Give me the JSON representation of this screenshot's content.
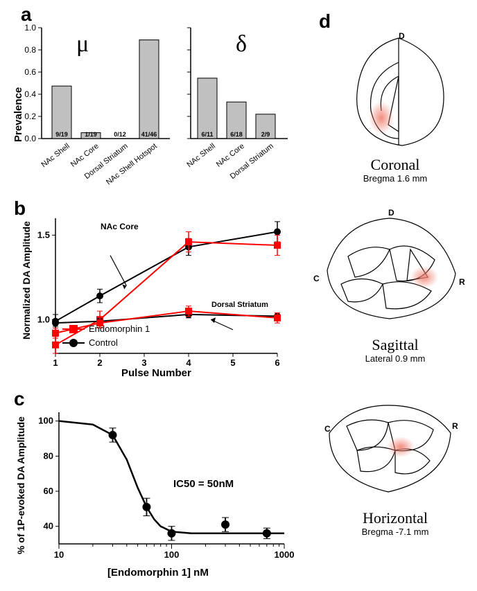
{
  "panel_a": {
    "label": "a",
    "ylabel": "Prevalence",
    "ylim": [
      0.0,
      1.0
    ],
    "ytick_step": 0.2,
    "mu_symbol": "μ",
    "delta_symbol": "δ",
    "bar_color": "#c0c0c0",
    "bar_border": "#000000",
    "mu": {
      "categories": [
        "NAc Shell",
        "NAc Core",
        "Dorsal Striatum",
        "NAc Shell Hotspot"
      ],
      "values": [
        0.474,
        0.053,
        0.0,
        0.89
      ],
      "fractions": [
        "9/19",
        "1/19",
        "0/12",
        "41/46"
      ]
    },
    "delta": {
      "categories": [
        "NAc Shell",
        "NAc Core",
        "Dorsal Striatum"
      ],
      "values": [
        0.545,
        0.33,
        0.22
      ],
      "fractions": [
        "6/11",
        "6/18",
        "2/9"
      ]
    }
  },
  "panel_b": {
    "label": "b",
    "ylabel": "Normalized DA Amplitude",
    "xlabel": "Pulse Number",
    "xlim": [
      1,
      6
    ],
    "ylim": [
      1.0,
      1.5
    ],
    "yticks": [
      1.0,
      1.5
    ],
    "series": [
      {
        "name": "Endomorphin 1",
        "color": "#ff0000",
        "marker": "square"
      },
      {
        "name": "Control",
        "color": "#000000",
        "marker": "circle"
      }
    ],
    "nac_core_label": "NAc Core",
    "dorsal_label": "Dorsal Striatum",
    "control_nac": {
      "x": [
        1,
        2,
        4,
        6
      ],
      "y": [
        0.99,
        1.14,
        1.43,
        1.52
      ],
      "err": [
        0.04,
        0.04,
        0.05,
        0.06
      ]
    },
    "endo_nac": {
      "x": [
        1,
        2,
        4,
        6
      ],
      "y": [
        0.85,
        1.0,
        1.46,
        1.44
      ],
      "err": [
        0.05,
        0.05,
        0.06,
        0.06
      ]
    },
    "control_ds": {
      "x": [
        1,
        2,
        4,
        6
      ],
      "y": [
        0.98,
        0.99,
        1.03,
        1.02
      ],
      "err": [
        0.02,
        0.02,
        0.02,
        0.02
      ]
    },
    "endo_ds": {
      "x": [
        1,
        2,
        4,
        6
      ],
      "y": [
        0.92,
        0.98,
        1.05,
        1.01
      ],
      "err": [
        0.03,
        0.03,
        0.03,
        0.03
      ]
    }
  },
  "panel_c": {
    "label": "c",
    "ylabel": "% of 1P-evoked DA Amplitude",
    "xlabel": "[Endomorphin 1] nM",
    "xlim": [
      10,
      1000
    ],
    "ylim": [
      40,
      100
    ],
    "yticks": [
      40,
      60,
      80,
      100
    ],
    "xticks": [
      10,
      100,
      1000
    ],
    "ic50_text": "IC50 = 50nM",
    "points": {
      "x": [
        30,
        60,
        100,
        300,
        700
      ],
      "y": [
        92,
        51,
        36,
        41,
        36
      ],
      "err": [
        4,
        5,
        4,
        4,
        3
      ]
    },
    "curve": [
      [
        10,
        100
      ],
      [
        20,
        98
      ],
      [
        30,
        92
      ],
      [
        40,
        78
      ],
      [
        50,
        62
      ],
      [
        60,
        51
      ],
      [
        70,
        44
      ],
      [
        80,
        40
      ],
      [
        100,
        37
      ],
      [
        150,
        36
      ],
      [
        300,
        36
      ],
      [
        700,
        36
      ],
      [
        1000,
        36
      ]
    ]
  },
  "panel_d": {
    "label": "d",
    "spot_color": "#f08070",
    "views": [
      {
        "title": "Coronal",
        "sub": "Bregma 1.6 mm"
      },
      {
        "title": "Sagittal",
        "sub": "Lateral 0.9 mm"
      },
      {
        "title": "Horizontal",
        "sub": "Bregma -7.1 mm"
      }
    ],
    "d_label": "D",
    "c_label": "C",
    "r_label": "R"
  }
}
